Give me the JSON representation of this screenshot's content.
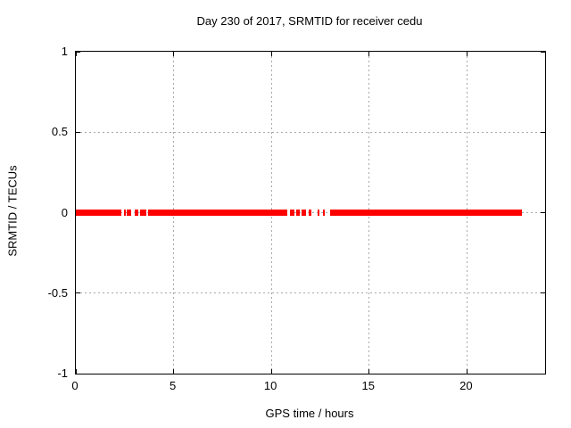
{
  "title": "Day 230 of 2017, SRMTID for receiver cedu",
  "xlabel": "GPS time / hours",
  "ylabel": "SRMTID / TECUs",
  "colors": {
    "data": "#ff0000",
    "grid": "#a8a8a8",
    "axis": "#000000",
    "background": "#ffffff"
  },
  "chart_data": {
    "type": "scatter",
    "title": "Day 230 of 2017, SRMTID for receiver cedu",
    "xlabel": "GPS time / hours",
    "ylabel": "SRMTID / TECUs",
    "xlim": [
      0,
      24
    ],
    "ylim": [
      -1,
      1
    ],
    "x_ticks": [
      0,
      5,
      10,
      15,
      20
    ],
    "y_ticks": [
      -1,
      -0.5,
      0,
      0.5,
      1
    ],
    "grid": true,
    "legend": false,
    "series": [
      {
        "name": "SRMTID",
        "color": "#ff0000",
        "y_value": 0,
        "marker_thickness_px": 7,
        "x_coverage_segments_hours": [
          [
            0.0,
            2.33
          ],
          [
            2.47,
            2.52
          ],
          [
            2.58,
            2.83
          ],
          [
            3.01,
            3.2
          ],
          [
            3.29,
            3.61
          ],
          [
            3.7,
            10.82
          ],
          [
            10.96,
            11.19
          ],
          [
            11.28,
            11.46
          ],
          [
            11.55,
            11.78
          ],
          [
            11.92,
            12.05
          ],
          [
            12.37,
            12.47
          ],
          [
            12.65,
            12.74
          ],
          [
            13.01,
            22.81
          ]
        ]
      }
    ]
  }
}
